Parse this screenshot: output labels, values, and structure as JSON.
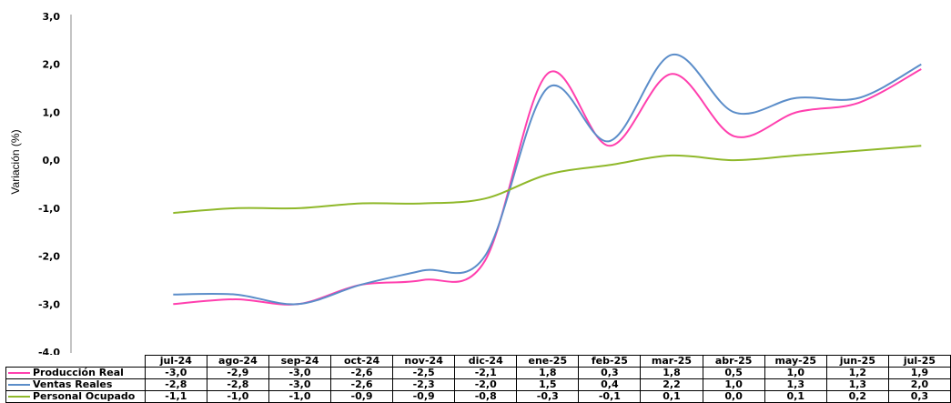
{
  "chart_data": {
    "type": "line",
    "ylabel": "Variación (%)",
    "ylim": [
      -4.0,
      3.0
    ],
    "yticks": [
      "3,0",
      "2,0",
      "1,0",
      "0,0",
      "-1,0",
      "-2,0",
      "-3,0",
      "-4,0"
    ],
    "grid": false,
    "legend": "data-table-below",
    "categories": [
      "jul-24",
      "ago-24",
      "sep-24",
      "oct-24",
      "nov-24",
      "dic-24",
      "ene-25",
      "feb-25",
      "mar-25",
      "abr-25",
      "may-25",
      "jun-25",
      "jul-25"
    ],
    "series": [
      {
        "name": "Producción Real",
        "color": "#ff3fae",
        "values": [
          -3.0,
          -2.9,
          -3.0,
          -2.6,
          -2.5,
          -2.1,
          1.8,
          0.3,
          1.8,
          0.5,
          1.0,
          1.2,
          1.9
        ],
        "labels": [
          "-3,0",
          "-2,9",
          "-3,0",
          "-2,6",
          "-2,5",
          "-2,1",
          "1,8",
          "0,3",
          "1,8",
          "0,5",
          "1,0",
          "1,2",
          "1,9"
        ]
      },
      {
        "name": "Ventas Reales",
        "color": "#5b8dc9",
        "values": [
          -2.8,
          -2.8,
          -3.0,
          -2.6,
          -2.3,
          -2.0,
          1.5,
          0.4,
          2.2,
          1.0,
          1.3,
          1.3,
          2.0
        ],
        "labels": [
          "-2,8",
          "-2,8",
          "-3,0",
          "-2,6",
          "-2,3",
          "-2,0",
          "1,5",
          "0,4",
          "2,2",
          "1,0",
          "1,3",
          "1,3",
          "2,0"
        ]
      },
      {
        "name": "Personal Ocupado",
        "color": "#8fb82a",
        "values": [
          -1.1,
          -1.0,
          -1.0,
          -0.9,
          -0.9,
          -0.8,
          -0.3,
          -0.1,
          0.1,
          0.0,
          0.1,
          0.2,
          0.3
        ],
        "labels": [
          "-1,1",
          "-1,0",
          "-1,0",
          "-0,9",
          "-0,9",
          "-0,8",
          "-0,3",
          "-0,1",
          "0,1",
          "0,0",
          "0,1",
          "0,2",
          "0,3"
        ]
      }
    ]
  }
}
